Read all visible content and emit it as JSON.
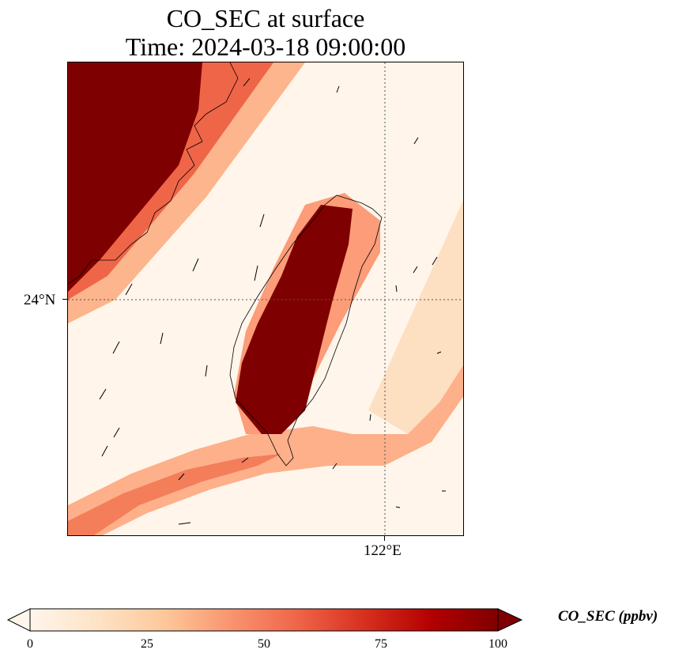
{
  "title": {
    "line1": "CO_SEC at surface",
    "line2": "Time: 2024-03-18 09:00:00"
  },
  "map": {
    "lat_label": "24°N",
    "lon_label": "122°E",
    "gridlines": "dotted"
  },
  "colorbar": {
    "label": "CO_SEC (ppbv)",
    "ticks": [
      "0",
      "25",
      "50",
      "75",
      "100"
    ],
    "min": 0,
    "max": 100,
    "extend": "both",
    "colormap": [
      "#fff5eb",
      "#fee6ce",
      "#fdd0a2",
      "#fdae6b",
      "#fd8d3c",
      "#f16913",
      "#d94801",
      "#a63603",
      "#7f2704"
    ],
    "display_colormap": [
      "#fff5eb",
      "#fde3c6",
      "#fdc89a",
      "#f99470",
      "#ef6548",
      "#d7301f",
      "#b30000",
      "#7f0000"
    ]
  },
  "legend_position": "bottom"
}
